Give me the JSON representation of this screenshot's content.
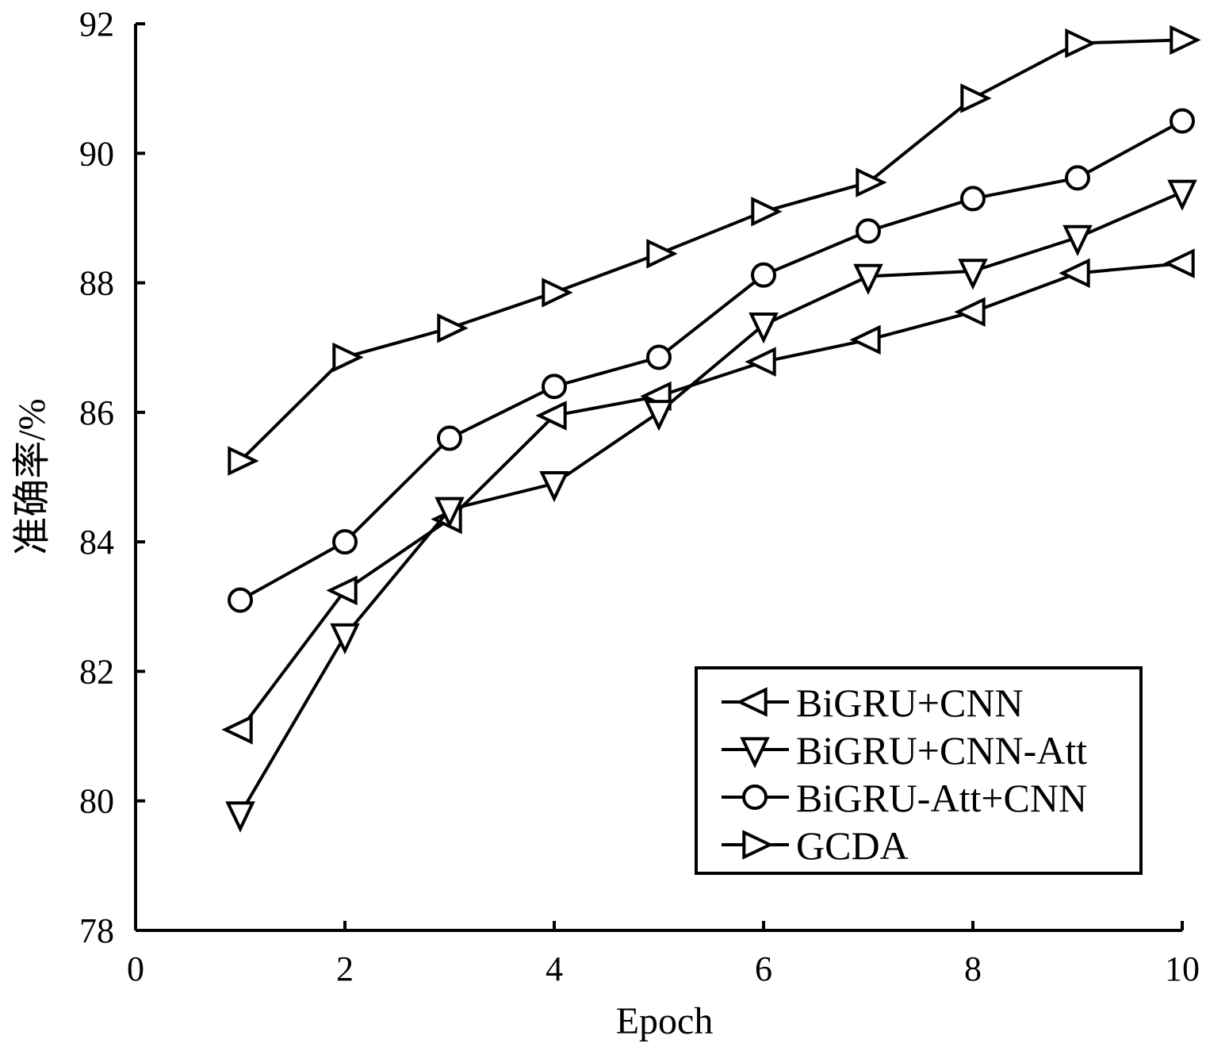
{
  "chart_data": {
    "type": "line",
    "xlabel": "Epoch",
    "ylabel": "准确率/%",
    "xlim": [
      0,
      10
    ],
    "ylim": [
      78,
      92
    ],
    "xticks": [
      0,
      2,
      4,
      6,
      8,
      10
    ],
    "yticks": [
      78,
      80,
      82,
      84,
      86,
      88,
      90,
      92
    ],
    "x": [
      1,
      2,
      3,
      4,
      5,
      6,
      7,
      8,
      9,
      10
    ],
    "grid": false,
    "legend_position": "bottom-right",
    "series": [
      {
        "name": "BiGRU+CNN",
        "marker": "triangle-left",
        "values": [
          81.1,
          83.25,
          84.35,
          85.95,
          86.25,
          86.78,
          87.12,
          87.55,
          88.15,
          88.3
        ]
      },
      {
        "name": "BiGRU+CNN-Att",
        "marker": "triangle-down",
        "values": [
          79.8,
          82.55,
          84.5,
          84.9,
          86.0,
          87.35,
          88.1,
          88.18,
          88.7,
          89.4
        ]
      },
      {
        "name": "BiGRU-Att+CNN",
        "marker": "circle",
        "values": [
          83.1,
          84.0,
          85.6,
          86.4,
          86.85,
          88.12,
          88.8,
          89.3,
          89.62,
          90.5
        ]
      },
      {
        "name": "GCDA",
        "marker": "triangle-right",
        "values": [
          85.25,
          86.85,
          87.3,
          87.85,
          88.45,
          89.1,
          89.55,
          90.85,
          91.7,
          91.75
        ]
      }
    ]
  }
}
